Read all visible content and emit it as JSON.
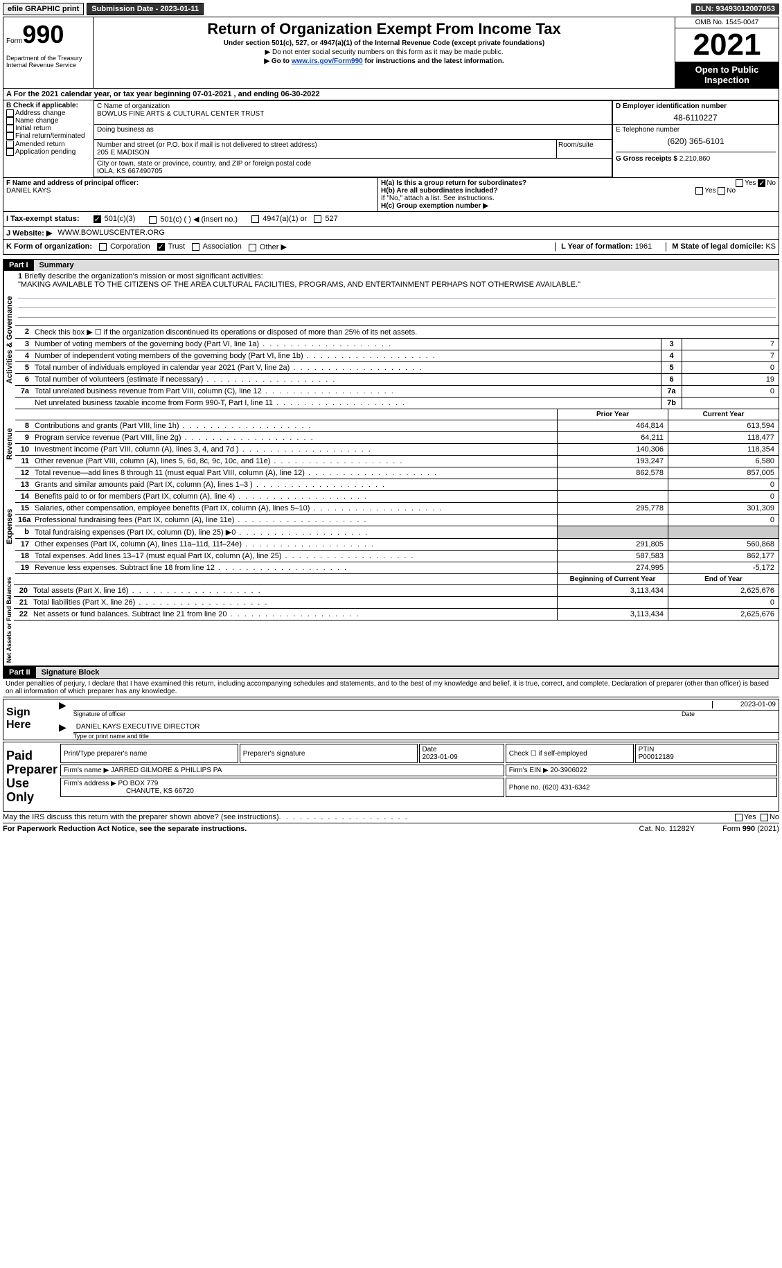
{
  "topbar": {
    "efile": "efile GRAPHIC print",
    "submission_label": "Submission Date - 2023-01-11",
    "dln": "DLN: 93493012007053"
  },
  "header": {
    "form_label": "Form",
    "form_no": "990",
    "dept": "Department of the Treasury\nInternal Revenue Service",
    "title": "Return of Organization Exempt From Income Tax",
    "subtitle": "Under section 501(c), 527, or 4947(a)(1) of the Internal Revenue Code (except private foundations)",
    "note1": "▶ Do not enter social security numbers on this form as it may be made public.",
    "note2_pre": "▶ Go to ",
    "note2_link": "www.irs.gov/Form990",
    "note2_post": " for instructions and the latest information.",
    "omb": "OMB No. 1545-0047",
    "year": "2021",
    "open": "Open to Public Inspection"
  },
  "row_a": "A For the 2021 calendar year, or tax year beginning 07-01-2021    , and ending 06-30-2022",
  "section_b": {
    "label": "B Check if applicable:",
    "opts": [
      "Address change",
      "Name change",
      "Initial return",
      "Final return/terminated",
      "Amended return",
      "Application pending"
    ]
  },
  "section_c": {
    "name_label": "C Name of organization",
    "name": "BOWLUS FINE ARTS & CULTURAL CENTER TRUST",
    "dba_label": "Doing business as",
    "addr_label": "Number and street (or P.O. box if mail is not delivered to street address)",
    "addr": "205 E MADISON",
    "room_label": "Room/suite",
    "city_label": "City or town, state or province, country, and ZIP or foreign postal code",
    "city": "IOLA, KS  667490705"
  },
  "section_d": {
    "label": "D Employer identification number",
    "value": "48-6110227"
  },
  "section_e": {
    "label": "E Telephone number",
    "value": "(620) 365-6101"
  },
  "section_g": {
    "label": "G Gross receipts $",
    "value": "2,210,860"
  },
  "section_f": {
    "label": "F Name and address of principal officer:",
    "value": "DANIEL KAYS"
  },
  "section_h": {
    "ha": "H(a)  Is this a group return for subordinates?",
    "hb": "H(b)  Are all subordinates included?",
    "hb_note": "If \"No,\" attach a list. See instructions.",
    "hc": "H(c)  Group exemption number ▶",
    "yes": "Yes",
    "no": "No"
  },
  "row_i": {
    "label": "I    Tax-exempt status:",
    "opts": [
      "501(c)(3)",
      "501(c) (  ) ◀ (insert no.)",
      "4947(a)(1) or",
      "527"
    ]
  },
  "row_j": {
    "label": "J    Website: ▶",
    "value": "WWW.BOWLUSCENTER.ORG"
  },
  "row_k": {
    "label": "K Form of organization:",
    "opts": [
      "Corporation",
      "Trust",
      "Association",
      "Other ▶"
    ],
    "l_label": "L Year of formation:",
    "l_val": "1961",
    "m_label": "M State of legal domicile:",
    "m_val": "KS"
  },
  "part1": {
    "header": "Part I",
    "title": "Summary",
    "line1_label": "Briefly describe the organization's mission or most significant activities:",
    "line1_text": "\"MAKING AVAILABLE TO THE CITIZENS OF THE AREA CULTURAL FACILITIES, PROGRAMS, AND ENTERTAINMENT PERHAPS NOT OTHERWISE AVAILABLE.\"",
    "line2": "Check this box ▶ ☐ if the organization discontinued its operations or disposed of more than 25% of its net assets.",
    "sides": {
      "ag": "Activities & Governance",
      "rev": "Revenue",
      "exp": "Expenses",
      "na": "Net Assets or Fund Balances"
    },
    "lines_ag": [
      {
        "n": "3",
        "t": "Number of voting members of the governing body (Part VI, line 1a)",
        "box": "3",
        "v": "7"
      },
      {
        "n": "4",
        "t": "Number of independent voting members of the governing body (Part VI, line 1b)",
        "box": "4",
        "v": "7"
      },
      {
        "n": "5",
        "t": "Total number of individuals employed in calendar year 2021 (Part V, line 2a)",
        "box": "5",
        "v": "0"
      },
      {
        "n": "6",
        "t": "Total number of volunteers (estimate if necessary)",
        "box": "6",
        "v": "19"
      },
      {
        "n": "7a",
        "t": "Total unrelated business revenue from Part VIII, column (C), line 12",
        "box": "7a",
        "v": "0"
      },
      {
        "n": "",
        "t": "Net unrelated business taxable income from Form 990-T, Part I, line 11",
        "box": "7b",
        "v": ""
      }
    ],
    "col_prior": "Prior Year",
    "col_current": "Current Year",
    "lines_rev": [
      {
        "n": "8",
        "t": "Contributions and grants (Part VIII, line 1h)",
        "p": "464,814",
        "c": "613,594"
      },
      {
        "n": "9",
        "t": "Program service revenue (Part VIII, line 2g)",
        "p": "64,211",
        "c": "118,477"
      },
      {
        "n": "10",
        "t": "Investment income (Part VIII, column (A), lines 3, 4, and 7d )",
        "p": "140,306",
        "c": "118,354"
      },
      {
        "n": "11",
        "t": "Other revenue (Part VIII, column (A), lines 5, 6d, 8c, 9c, 10c, and 11e)",
        "p": "193,247",
        "c": "6,580"
      },
      {
        "n": "12",
        "t": "Total revenue—add lines 8 through 11 (must equal Part VIII, column (A), line 12)",
        "p": "862,578",
        "c": "857,005"
      }
    ],
    "lines_exp": [
      {
        "n": "13",
        "t": "Grants and similar amounts paid (Part IX, column (A), lines 1–3 )",
        "p": "",
        "c": "0"
      },
      {
        "n": "14",
        "t": "Benefits paid to or for members (Part IX, column (A), line 4)",
        "p": "",
        "c": "0"
      },
      {
        "n": "15",
        "t": "Salaries, other compensation, employee benefits (Part IX, column (A), lines 5–10)",
        "p": "295,778",
        "c": "301,309"
      },
      {
        "n": "16a",
        "t": "Professional fundraising fees (Part IX, column (A), line 11e)",
        "p": "",
        "c": "0"
      },
      {
        "n": "b",
        "t": "Total fundraising expenses (Part IX, column (D), line 25) ▶0",
        "p": "GRAY",
        "c": "GRAY"
      },
      {
        "n": "17",
        "t": "Other expenses (Part IX, column (A), lines 11a–11d, 11f–24e)",
        "p": "291,805",
        "c": "560,868"
      },
      {
        "n": "18",
        "t": "Total expenses. Add lines 13–17 (must equal Part IX, column (A), line 25)",
        "p": "587,583",
        "c": "862,177"
      },
      {
        "n": "19",
        "t": "Revenue less expenses. Subtract line 18 from line 12",
        "p": "274,995",
        "c": "-5,172"
      }
    ],
    "col_begin": "Beginning of Current Year",
    "col_end": "End of Year",
    "lines_na": [
      {
        "n": "20",
        "t": "Total assets (Part X, line 16)",
        "p": "3,113,434",
        "c": "2,625,676"
      },
      {
        "n": "21",
        "t": "Total liabilities (Part X, line 26)",
        "p": "",
        "c": "0"
      },
      {
        "n": "22",
        "t": "Net assets or fund balances. Subtract line 21 from line 20",
        "p": "3,113,434",
        "c": "2,625,676"
      }
    ]
  },
  "part2": {
    "header": "Part II",
    "title": "Signature Block",
    "declaration": "Under penalties of perjury, I declare that I have examined this return, including accompanying schedules and statements, and to the best of my knowledge and belief, it is true, correct, and complete. Declaration of preparer (other than officer) is based on all information of which preparer has any knowledge.",
    "sign_here": "Sign Here",
    "sig_officer": "Signature of officer",
    "sig_date": "2023-01-09",
    "date_label": "Date",
    "name_title": "DANIEL KAYS  EXECUTIVE DIRECTOR",
    "name_title_label": "Type or print name and title",
    "paid": "Paid Preparer Use Only",
    "prep_name_label": "Print/Type preparer's name",
    "prep_sig_label": "Preparer's signature",
    "prep_date_label": "Date",
    "prep_date": "2023-01-09",
    "check_self": "Check ☐ if self-employed",
    "ptin_label": "PTIN",
    "ptin": "P00012189",
    "firm_name_label": "Firm's name    ▶",
    "firm_name": "JARRED GILMORE & PHILLIPS PA",
    "firm_ein_label": "Firm's EIN ▶",
    "firm_ein": "20-3906022",
    "firm_addr_label": "Firm's address ▶",
    "firm_addr": "PO BOX 779",
    "firm_city": "CHANUTE, KS  66720",
    "phone_label": "Phone no.",
    "phone": "(620) 431-6342",
    "may_irs": "May the IRS discuss this return with the preparer shown above? (see instructions)"
  },
  "footer": {
    "paperwork": "For Paperwork Reduction Act Notice, see the separate instructions.",
    "cat": "Cat. No. 11282Y",
    "form": "Form 990 (2021)"
  }
}
